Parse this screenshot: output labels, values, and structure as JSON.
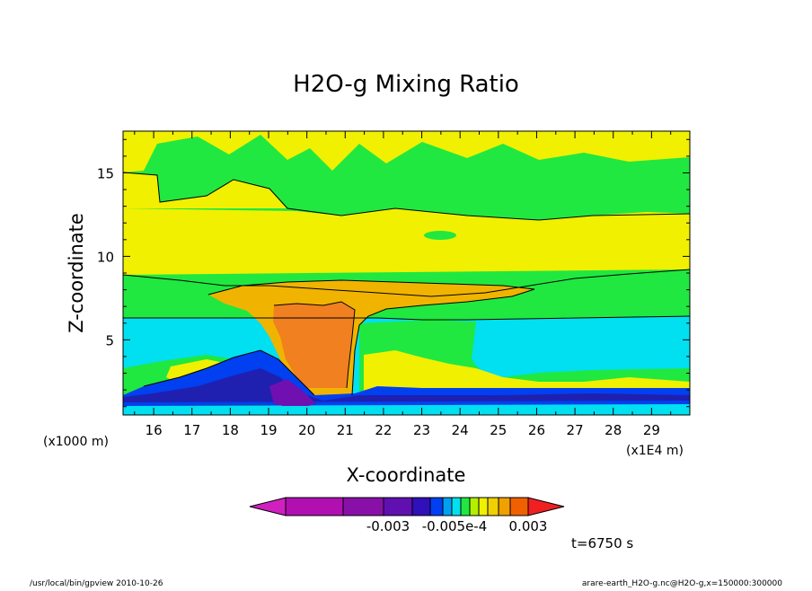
{
  "chart_data": {
    "type": "heatmap",
    "title": "H2O-g Mixing Ratio",
    "xlabel": "X-coordinate",
    "ylabel": "Z-coordinate",
    "xlim": [
      15.2,
      30.0
    ],
    "ylim": [
      0.5,
      17.5
    ],
    "x_ticks": [
      16,
      17,
      18,
      19,
      20,
      21,
      22,
      23,
      24,
      25,
      26,
      27,
      28,
      29
    ],
    "y_ticks": [
      5,
      10,
      15
    ],
    "x_unit_left": "(x1000 m)",
    "x_unit_right": "(x1E4 m)",
    "colorbar": {
      "colors": [
        "#d020c0",
        "#b010b0",
        "#8810a8",
        "#6010b0",
        "#3010b8",
        "#0040f0",
        "#00a0f0",
        "#00e0f0",
        "#20e840",
        "#b0f000",
        "#f0f000",
        "#f0d000",
        "#f0a000",
        "#f06000",
        "#f02020"
      ],
      "labels": [
        "-0.003",
        "-0.005e-4",
        "0.003"
      ]
    },
    "levels_palette": {
      "yellow": "#f0f000",
      "green": "#20e840",
      "cyan": "#00e0f0",
      "orange_light": "#f0b400",
      "orange": "#f08020",
      "blue": "#0040f0",
      "navy": "#2020b0",
      "purple": "#7010b0"
    }
  },
  "timestamp": "t=6750 s",
  "footer": {
    "left": "/usr/local/bin/gpview  2010-10-26",
    "right": "arare-earth_H2O-g.nc@H2O-g,x=150000:300000"
  }
}
